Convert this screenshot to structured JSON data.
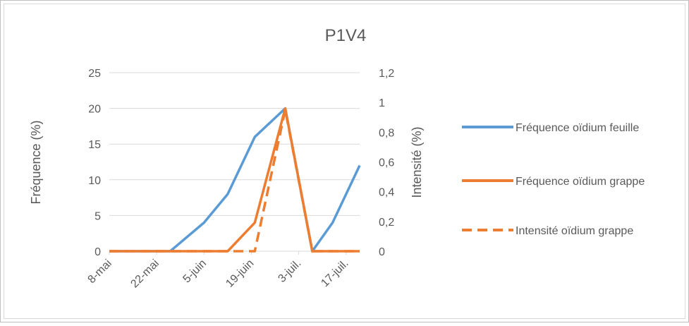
{
  "chart_data": {
    "type": "line",
    "title": "P1V4",
    "y_label": "Fréquence (%)",
    "y2_label": "Intensité (%)",
    "x": [
      "05-08",
      "05-26",
      "06-05",
      "06-12",
      "06-20",
      "06-29",
      "07-07",
      "07-13",
      "07-21"
    ],
    "xlim": [
      "05-08",
      "07-21"
    ],
    "xticks": [
      {
        "value": "05-08",
        "label": "8-mai"
      },
      {
        "value": "05-22",
        "label": "22-mai"
      },
      {
        "value": "06-05",
        "label": "5-juin"
      },
      {
        "value": "06-19",
        "label": "19-juin"
      },
      {
        "value": "07-03",
        "label": "3-juil."
      },
      {
        "value": "07-17",
        "label": "17-juil."
      }
    ],
    "ylim": [
      0,
      25
    ],
    "yticks": [
      0,
      5,
      10,
      15,
      20,
      25
    ],
    "y2lim": [
      0,
      1.2
    ],
    "y2ticks": [
      0,
      {
        "value": 0.2,
        "label": "0,2"
      },
      {
        "value": 0.4,
        "label": "0,4"
      },
      {
        "value": 0.6,
        "label": "0,6"
      },
      {
        "value": 0.8,
        "label": "0,8"
      },
      1,
      {
        "value": 1.2,
        "label": "1,2"
      }
    ],
    "grid": true,
    "legend": "right",
    "series": [
      {
        "name": "Fréquence oïdium feuille",
        "color": "#5b9bd5",
        "values": [
          0,
          0,
          4,
          8,
          16,
          20,
          0,
          4,
          12
        ]
      },
      {
        "name": "Fréquence oïdium grappe",
        "color": "#ed7d31",
        "values": [
          0,
          0,
          0,
          0,
          4,
          20,
          0,
          0,
          0
        ]
      },
      {
        "name": "Intensité oïdium grappe",
        "color": "#ed7d31",
        "dash": true,
        "axis": "y2",
        "values": [
          0,
          0,
          0,
          0,
          0,
          0.95,
          0,
          0,
          0
        ]
      }
    ]
  }
}
